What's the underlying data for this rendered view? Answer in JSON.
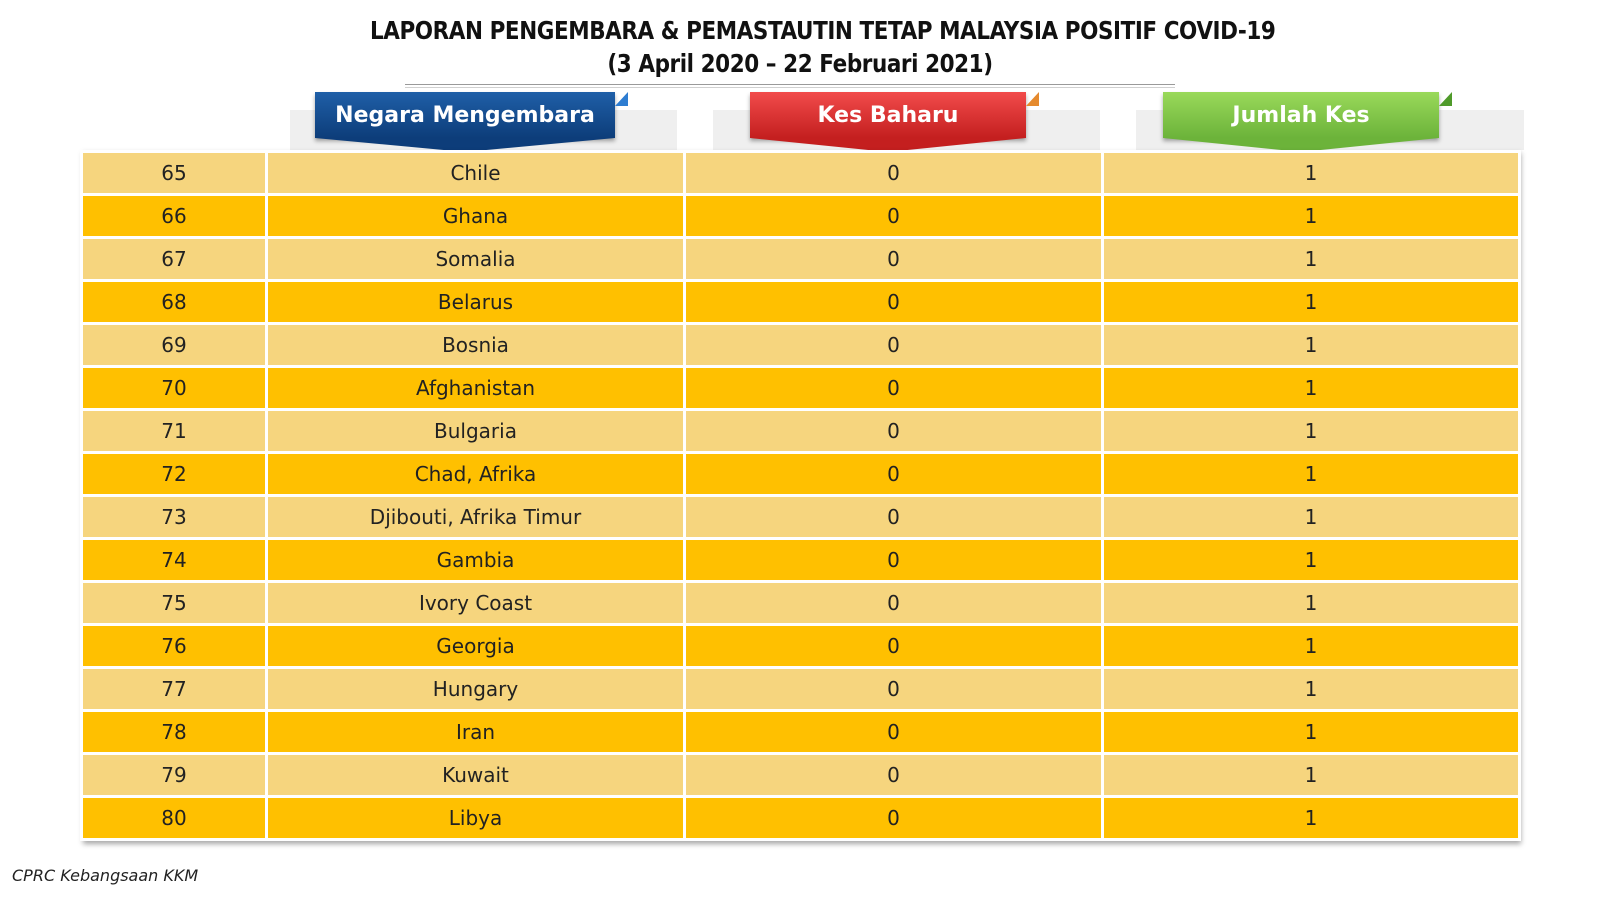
{
  "title": {
    "line1": "LAPORAN PENGEMBARA & PEMASTAUTIN TETAP MALAYSIA POSITIF COVID-19",
    "line2": "(3 April 2020 – 22 Februari 2021)"
  },
  "headers": {
    "country": "Negara Mengembara",
    "new_cases": "Kes Baharu",
    "total_cases": "Jumlah Kes"
  },
  "colors": {
    "row_light": "#f6d57e",
    "row_dark": "#ffc000",
    "header_blue": "#0d3d7a",
    "header_red": "#c41f1f",
    "header_green": "#6cb33a"
  },
  "rows": [
    {
      "no": "65",
      "country": "Chile",
      "new": "0",
      "total": "1"
    },
    {
      "no": "66",
      "country": "Ghana",
      "new": "0",
      "total": "1"
    },
    {
      "no": "67",
      "country": "Somalia",
      "new": "0",
      "total": "1"
    },
    {
      "no": "68",
      "country": "Belarus",
      "new": "0",
      "total": "1"
    },
    {
      "no": "69",
      "country": "Bosnia",
      "new": "0",
      "total": "1"
    },
    {
      "no": "70",
      "country": "Afghanistan",
      "new": "0",
      "total": "1"
    },
    {
      "no": "71",
      "country": "Bulgaria",
      "new": "0",
      "total": "1"
    },
    {
      "no": "72",
      "country": "Chad, Afrika",
      "new": "0",
      "total": "1"
    },
    {
      "no": "73",
      "country": "Djibouti, Afrika Timur",
      "new": "0",
      "total": "1"
    },
    {
      "no": "74",
      "country": "Gambia",
      "new": "0",
      "total": "1"
    },
    {
      "no": "75",
      "country": "Ivory Coast",
      "new": "0",
      "total": "1"
    },
    {
      "no": "76",
      "country": "Georgia",
      "new": "0",
      "total": "1"
    },
    {
      "no": "77",
      "country": "Hungary",
      "new": "0",
      "total": "1"
    },
    {
      "no": "78",
      "country": "Iran",
      "new": "0",
      "total": "1"
    },
    {
      "no": "79",
      "country": "Kuwait",
      "new": "0",
      "total": "1"
    },
    {
      "no": "80",
      "country": "Libya",
      "new": "0",
      "total": "1"
    }
  ],
  "footer": "CPRC Kebangsaan KKM"
}
